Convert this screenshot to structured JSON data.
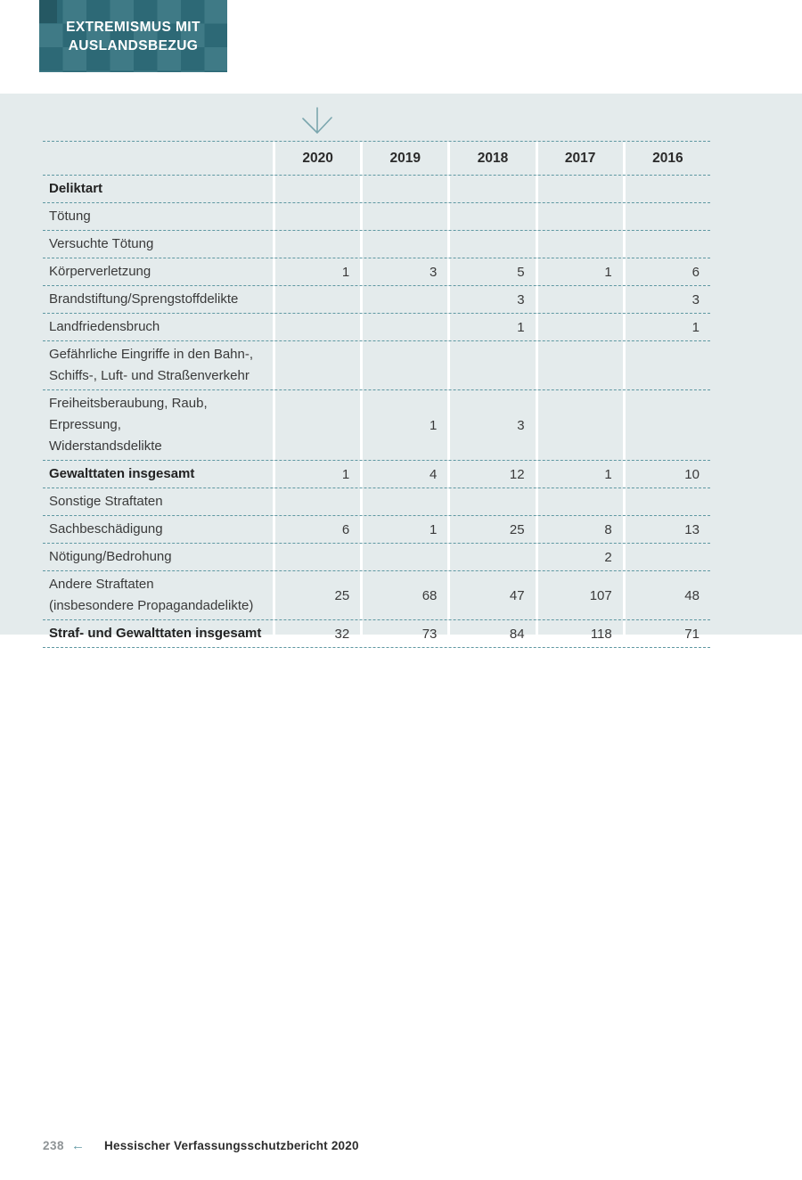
{
  "badge": {
    "title_lines": [
      "EXTREMISMUS MIT",
      "AUSLANDSBEZUG"
    ]
  },
  "icons": {
    "table_pointer": "down-arrow",
    "footer_back": "left-arrow"
  },
  "colors": {
    "badge_teal": "#30707d",
    "band_background": "#e4ebec",
    "table_dash_line": "#5f98a2",
    "accent_teal": "#649aa5",
    "body_text": "#3a3a3a"
  },
  "table": {
    "header_columns": [
      "2020",
      "2019",
      "2018",
      "2017",
      "2016"
    ],
    "rows": [
      {
        "label": [
          "Deliktart"
        ],
        "bold": true
      },
      {
        "label": [
          "Tötung"
        ]
      },
      {
        "label": [
          "Versuchte Tötung"
        ]
      },
      {
        "label": [
          "Körperverletzung"
        ],
        "values": [
          "1",
          "3",
          "5",
          "1",
          "6"
        ]
      },
      {
        "label": [
          "Brandstiftung/Sprengstoffdelikte"
        ],
        "values": [
          "",
          "",
          "3",
          "",
          "3"
        ]
      },
      {
        "label": [
          "Landfriedensbruch"
        ],
        "values": [
          "",
          "",
          "1",
          "",
          "1"
        ]
      },
      {
        "label": [
          "Gefährliche Eingriffe in den Bahn-,",
          "Schiffs-, Luft- und Straßenverkehr"
        ]
      },
      {
        "label": [
          "Freiheitsberaubung, Raub, Erpressung,",
          "Widerstandsdelikte"
        ],
        "values": [
          "",
          "1",
          "3",
          "",
          ""
        ]
      },
      {
        "label": [
          "Gewalttaten insgesamt"
        ],
        "bold": true,
        "values": [
          "1",
          "4",
          "12",
          "1",
          "10"
        ]
      },
      {
        "label": [
          "Sonstige Straftaten"
        ]
      },
      {
        "label": [
          "Sachbeschädigung"
        ],
        "values": [
          "6",
          "1",
          "25",
          "8",
          "13"
        ]
      },
      {
        "label": [
          "Nötigung/Bedrohung"
        ],
        "values": [
          "",
          "",
          "",
          "2",
          ""
        ]
      },
      {
        "label": [
          "Andere Straftaten",
          "(insbesondere Propagandadelikte)"
        ],
        "values": [
          "25",
          "68",
          "47",
          "107",
          "48"
        ]
      },
      {
        "label": [
          "Straf- und Gewalttaten insgesamt"
        ],
        "bold": true,
        "values": [
          "32",
          "73",
          "84",
          "118",
          "71"
        ]
      }
    ]
  },
  "footer": {
    "page_number": "238",
    "back_arrow": "←",
    "report_title": "Hessischer Verfassungsschutzbericht 2020"
  }
}
